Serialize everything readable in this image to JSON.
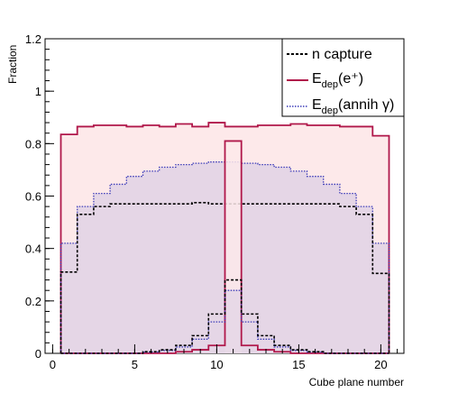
{
  "chart_data": {
    "type": "histogram-step",
    "xlabel": "Cube plane number",
    "ylabel": "Fraction",
    "xlim": [
      -0.5,
      21.5
    ],
    "ylim": [
      0,
      1.2
    ],
    "xticks": [
      0,
      5,
      10,
      15,
      20
    ],
    "xtick_labels": [
      "0",
      "5",
      "10",
      "15",
      "20"
    ],
    "yticks": [
      0,
      0.2,
      0.4,
      0.6,
      0.8,
      1,
      1.2
    ],
    "ytick_labels": [
      "0",
      "0.2",
      "0.4",
      "0.6",
      "0.8",
      "1",
      "1.2"
    ],
    "grid": false,
    "legend_position": "top-right",
    "bins": [
      1,
      2,
      3,
      4,
      5,
      6,
      7,
      8,
      9,
      10,
      11,
      12,
      13,
      14,
      15,
      16,
      17,
      18,
      19,
      20
    ],
    "bin_width": 1,
    "series": [
      {
        "name": "n capture",
        "legend": {
          "main": "n capture",
          "sub": "",
          "tail": ""
        },
        "style": "dashed",
        "color": "#000000",
        "fill": "none",
        "values": [
          0.31,
          0.53,
          0.56,
          0.57,
          0.57,
          0.57,
          0.57,
          0.57,
          0.575,
          0.57,
          0.57,
          0.57,
          0.57,
          0.57,
          0.57,
          0.57,
          0.57,
          0.56,
          0.53,
          0.305
        ],
        "peak": {
          "bin": 11,
          "value": 0.28
        },
        "peak_side_bins": {
          "10": 0.15,
          "12": 0.15
        }
      },
      {
        "name": "E_dep(e+)",
        "legend": {
          "main": "E",
          "sub": "dep",
          "tail": "(e⁺)"
        },
        "style": "solid",
        "color": "#b0174a",
        "fill": "#fde9ea",
        "values": [
          0.835,
          0.865,
          0.87,
          0.87,
          0.865,
          0.87,
          0.865,
          0.875,
          0.865,
          0.88,
          0.865,
          0.865,
          0.87,
          0.87,
          0.875,
          0.87,
          0.87,
          0.865,
          0.865,
          0.83
        ],
        "peak": {
          "bin": 11,
          "value": 0.81
        },
        "peak_side_bins": {
          "10": 0.03,
          "12": 0.03
        }
      },
      {
        "name": "E_dep(annih γ)",
        "legend": {
          "main": "E",
          "sub": "dep",
          "tail": "(annih γ)"
        },
        "style": "dotted",
        "color": "#3a3ab8",
        "fill": "#e5d6e6",
        "values": [
          0.42,
          0.56,
          0.61,
          0.645,
          0.675,
          0.695,
          0.71,
          0.72,
          0.725,
          0.73,
          0.73,
          0.725,
          0.72,
          0.71,
          0.695,
          0.675,
          0.645,
          0.61,
          0.56,
          0.42
        ],
        "peak": {
          "bin": 11,
          "value": 0.24
        },
        "peak_side_bins": {
          "10": 0.12,
          "12": 0.12
        }
      }
    ]
  }
}
